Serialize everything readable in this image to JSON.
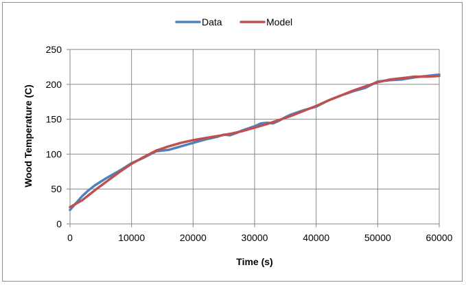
{
  "chart_data": {
    "type": "line",
    "title": "",
    "xlabel": "Time (s)",
    "ylabel": "Wood Temperature (C)",
    "xlim": [
      0,
      60000
    ],
    "ylim": [
      0,
      250
    ],
    "xticks": [
      0,
      10000,
      20000,
      30000,
      40000,
      50000,
      60000
    ],
    "yticks": [
      0,
      50,
      100,
      150,
      200,
      250
    ],
    "grid": true,
    "legend_position": "top",
    "series": [
      {
        "name": "Data",
        "color": "#4f81bd",
        "x": [
          0,
          1000,
          2000,
          3000,
          4000,
          6000,
          8000,
          10000,
          12000,
          14000,
          16000,
          18000,
          20000,
          22000,
          24000,
          25000,
          26000,
          27000,
          28000,
          30000,
          31000,
          32000,
          33000,
          34000,
          35000,
          36000,
          38000,
          40000,
          42000,
          44000,
          46000,
          48000,
          50000,
          52000,
          54000,
          56000,
          58000,
          60000
        ],
        "y": [
          20,
          30,
          40,
          48,
          55,
          66,
          76,
          87,
          95,
          104,
          106,
          111,
          116,
          121,
          125,
          128,
          127,
          130,
          134,
          140,
          144,
          145,
          144,
          148,
          153,
          157,
          163,
          168,
          177,
          184,
          190,
          195,
          204,
          206,
          207,
          210,
          212,
          214
        ]
      },
      {
        "name": "Model",
        "color": "#c0504d",
        "x": [
          0,
          2000,
          4000,
          6000,
          8000,
          10000,
          12000,
          14000,
          16000,
          18000,
          20000,
          22000,
          24000,
          26000,
          28000,
          30000,
          32000,
          34000,
          36000,
          38000,
          40000,
          42000,
          44000,
          46000,
          48000,
          50000,
          52000,
          54000,
          56000,
          58000,
          60000
        ],
        "y": [
          24,
          34,
          48,
          61,
          74,
          86,
          96,
          105,
          111,
          116,
          120,
          123,
          126,
          129,
          133,
          138,
          143,
          149,
          155,
          162,
          169,
          177,
          184,
          191,
          197,
          203,
          207,
          209,
          211,
          211,
          212
        ]
      }
    ]
  }
}
